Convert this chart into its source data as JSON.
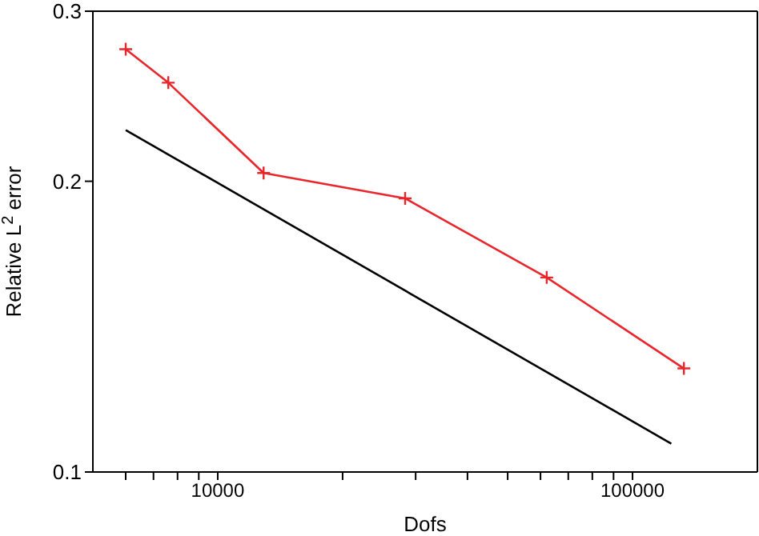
{
  "chart_data": {
    "type": "line",
    "xlabel": "Dofs",
    "ylabel": "Relative L$^{2}$ error",
    "log": "xy",
    "xlim": [
      5000,
      200000
    ],
    "xticks": [
      {
        "value": 6000,
        "label": null
      },
      {
        "value": 7000,
        "label": null
      },
      {
        "value": 8000,
        "label": null
      },
      {
        "value": 9000,
        "label": null
      },
      10000,
      {
        "value": 20000,
        "label": null
      },
      {
        "value": 30000,
        "label": null
      },
      {
        "value": 40000,
        "label": null
      },
      {
        "value": 50000,
        "label": null
      },
      {
        "value": 60000,
        "label": null
      },
      {
        "value": 70000,
        "label": null
      },
      {
        "value": 80000,
        "label": null
      },
      {
        "value": 90000,
        "label": null
      },
      100000
    ],
    "ylim": [
      0.1,
      0.3
    ],
    "yticks": [
      0.1,
      0.2,
      0.3
    ],
    "series": [
      {
        "color": "#e8262b",
        "marker": "cross",
        "x": [
          6000,
          7600,
          12900,
          28300,
          62100,
          133000
        ],
        "values": [
          0.274,
          0.253,
          0.204,
          0.192,
          0.159,
          0.128
        ]
      },
      {
        "color": "#000000",
        "marker": "none",
        "x": [
          6000,
          124000
        ],
        "values": [
          0.226,
          0.107
        ]
      }
    ]
  }
}
